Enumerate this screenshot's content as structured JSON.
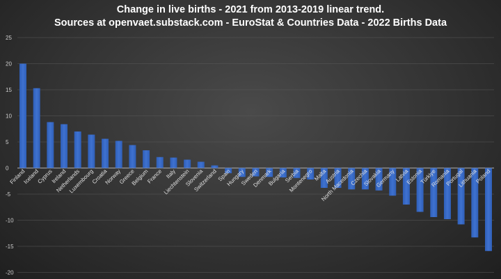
{
  "chart_data": {
    "type": "bar",
    "title": "Change in live births - 2021 from 2013-2019 linear trend.",
    "subtitle": "Sources at openvaet.substack.com - EuroStat & Countries Data - 2022 Births Data",
    "xlabel": "",
    "ylabel": "",
    "ylim": [
      -20,
      25
    ],
    "yticks": [
      25,
      20,
      15,
      10,
      5,
      0,
      -5,
      -10,
      -15,
      -20
    ],
    "grid": true,
    "bar_color": "#3f72d0",
    "categories": [
      "Finland",
      "Iceland",
      "Cyprus",
      "Ireland",
      "Netherlands",
      "Luxembourg",
      "Croatia",
      "Norway",
      "Greece",
      "Belgium",
      "France",
      "Italy",
      "Liechtenstein",
      "Slovenia",
      "Switzerland",
      "Spain",
      "Hungary",
      "Sweden",
      "Denmark",
      "Bulgaria",
      "Serbia",
      "Montenegro",
      "Malta",
      "Austria",
      "North Macedonia",
      "Czechia",
      "Slovakia",
      "Germany",
      "Latvia",
      "Estonia",
      "Türkiye",
      "Romania",
      "Portugal",
      "Lithuania",
      "Poland"
    ],
    "values": [
      20.0,
      15.3,
      8.8,
      8.4,
      7.0,
      6.4,
      5.6,
      5.2,
      4.4,
      3.4,
      2.1,
      2.0,
      1.6,
      1.2,
      0.5,
      -1.0,
      -1.7,
      -1.6,
      -1.7,
      -1.8,
      -1.9,
      -2.2,
      -3.8,
      -3.8,
      -4.1,
      -4.1,
      -4.3,
      -5.3,
      -7.0,
      -8.4,
      -9.4,
      -9.8,
      -10.8,
      -13.3,
      -15.9
    ]
  }
}
